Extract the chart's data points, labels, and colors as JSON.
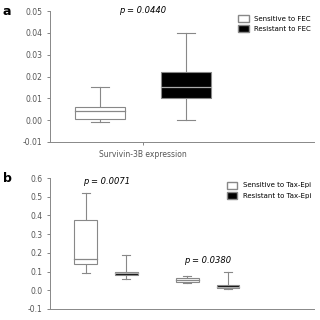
{
  "panel_a": {
    "title": "p = 0.0440",
    "xlabel": "Survivin-3B expression",
    "ylim": [
      -0.01,
      0.05
    ],
    "yticks": [
      -0.01,
      0.0,
      0.01,
      0.02,
      0.03,
      0.04,
      0.05
    ],
    "boxes": [
      {
        "color": "white",
        "whislo": -0.001,
        "q1": 0.0005,
        "med": 0.004,
        "q3": 0.006,
        "whishi": 0.015,
        "x": 1.0
      },
      {
        "color": "black",
        "whislo": 0.0,
        "q1": 0.01,
        "med": 0.015,
        "q3": 0.022,
        "whishi": 0.04,
        "x": 2.2
      }
    ],
    "legend_labels": [
      "Sensitive to FEC",
      "Resistant to FEC"
    ],
    "legend_colors": [
      "white",
      "black"
    ],
    "box_width": 0.7
  },
  "panel_b": {
    "title1": "p = 0.0071",
    "title2": "p = 0.0380",
    "ylim": [
      -0.1,
      0.6
    ],
    "yticks": [
      -0.1,
      0.0,
      0.1,
      0.2,
      0.3,
      0.4,
      0.5,
      0.6
    ],
    "boxes": [
      {
        "color": "white",
        "whislo": 0.09,
        "q1": 0.14,
        "med": 0.165,
        "q3": 0.375,
        "whishi": 0.52,
        "x": 1.0
      },
      {
        "color": "black",
        "whislo": 0.06,
        "q1": 0.08,
        "med": 0.09,
        "q3": 0.1,
        "whishi": 0.19,
        "x": 1.8
      },
      {
        "color": "white",
        "whislo": 0.038,
        "q1": 0.045,
        "med": 0.055,
        "q3": 0.065,
        "whishi": 0.075,
        "x": 3.0
      },
      {
        "color": "black",
        "whislo": 0.005,
        "q1": 0.01,
        "med": 0.02,
        "q3": 0.03,
        "whishi": 0.1,
        "x": 3.8
      }
    ],
    "legend_labels": [
      "Sensitive to Tax-Epi",
      "Resistant to Tax-Epi"
    ],
    "legend_colors": [
      "white",
      "black"
    ],
    "box_width": 0.45
  },
  "bg_color": "#ffffff",
  "edge_color": "#888888"
}
